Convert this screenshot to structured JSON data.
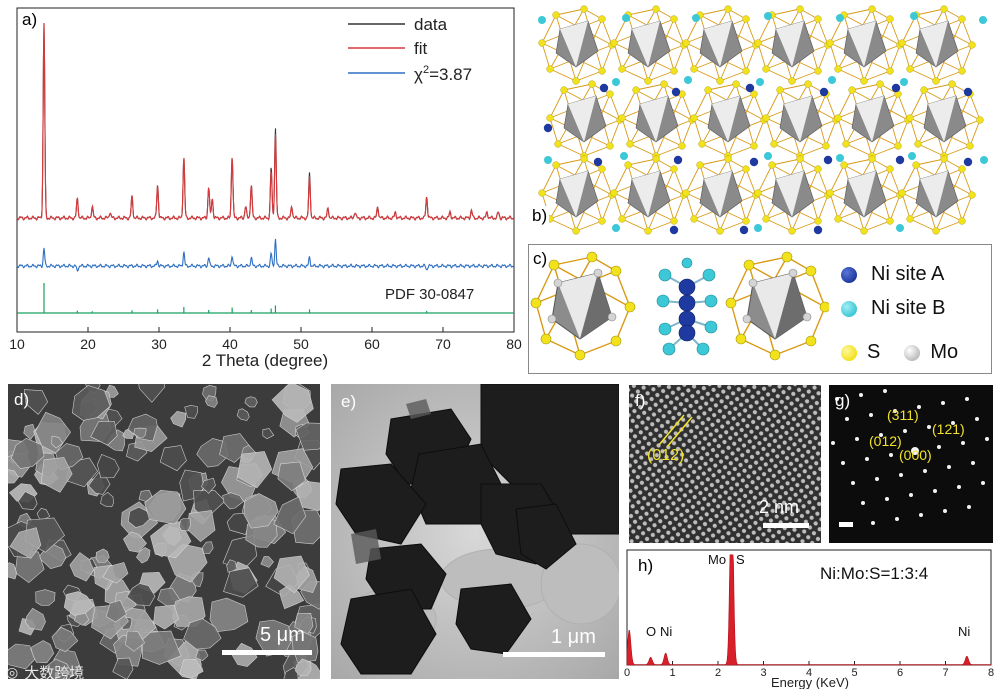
{
  "panels": {
    "a": {
      "label": "a)",
      "legend": {
        "data": "data",
        "fit": "fit",
        "chi": "χ",
        "chi_sup": "2",
        "chi_val": "=3.87"
      },
      "pdf_label": "PDF 30-0847",
      "colors": {
        "data": "#333333",
        "fit": "#d9393b",
        "residual": "#2f6fc2",
        "pdf": "#19a05f"
      }
    },
    "b": {
      "label": "b)"
    },
    "c": {
      "label": "c)",
      "legend": [
        {
          "name": "Ni site A",
          "color": "#1e3aa0"
        },
        {
          "name": "Ni site B",
          "color": "#3cc8d6"
        },
        {
          "name": "S",
          "color": "#f1e21c"
        },
        {
          "name": "Mo",
          "color": "#bdbdbd"
        }
      ]
    },
    "d": {
      "label": "d)",
      "scale": "5 μm"
    },
    "e": {
      "label": "e)",
      "scale": "1 μm"
    },
    "f": {
      "label": "f)",
      "plane": "(012)",
      "scale": "2 nm"
    },
    "g": {
      "label": "g)",
      "spots": [
        "(311)",
        "(121)",
        "(012)",
        "(000)"
      ]
    },
    "h": {
      "label": "h)",
      "ratio": "Ni:Mo:S=1:3:4",
      "peaks": [
        "O",
        "Ni",
        "Mo",
        "S",
        "Ni"
      ]
    },
    "watermark": "大数跨境"
  },
  "chart_data": [
    {
      "type": "line",
      "panel": "a",
      "xlabel": "2 Theta (degree)",
      "xlim": [
        10,
        80
      ],
      "xticks": [
        10,
        20,
        30,
        40,
        50,
        60,
        70,
        80
      ],
      "series": [
        {
          "name": "fit",
          "peaks": [
            [
              13.8,
              1.0
            ],
            [
              18.5,
              0.1
            ],
            [
              20.6,
              0.06
            ],
            [
              23.1,
              0.03
            ],
            [
              26.2,
              0.11
            ],
            [
              29.8,
              0.17
            ],
            [
              33.5,
              0.31
            ],
            [
              37.0,
              0.16
            ],
            [
              37.5,
              0.1
            ],
            [
              40.3,
              0.32
            ],
            [
              42.2,
              0.06
            ],
            [
              43.0,
              0.17
            ],
            [
              45.8,
              0.24
            ],
            [
              46.4,
              0.43
            ],
            [
              48.7,
              0.06
            ],
            [
              51.2,
              0.21
            ],
            [
              53.8,
              0.05
            ],
            [
              57.6,
              0.03
            ],
            [
              60.8,
              0.06
            ],
            [
              63.3,
              0.03
            ],
            [
              67.7,
              0.11
            ],
            [
              71.0,
              0.03
            ],
            [
              74.0,
              0.04
            ],
            [
              76.2,
              0.03
            ],
            [
              77.8,
              0.03
            ]
          ]
        },
        {
          "name": "data",
          "peaks": [
            [
              13.8,
              1.0
            ],
            [
              18.5,
              0.1
            ],
            [
              20.6,
              0.06
            ],
            [
              23.1,
              0.03
            ],
            [
              26.2,
              0.11
            ],
            [
              29.8,
              0.17
            ],
            [
              33.5,
              0.31
            ],
            [
              37.0,
              0.16
            ],
            [
              37.5,
              0.1
            ],
            [
              40.3,
              0.32
            ],
            [
              42.2,
              0.06
            ],
            [
              43.0,
              0.17
            ],
            [
              45.8,
              0.26
            ],
            [
              46.4,
              0.46
            ],
            [
              48.7,
              0.06
            ],
            [
              51.2,
              0.23
            ],
            [
              53.8,
              0.05
            ],
            [
              57.6,
              0.03
            ],
            [
              60.8,
              0.06
            ],
            [
              63.3,
              0.03
            ],
            [
              67.7,
              0.11
            ],
            [
              71.0,
              0.03
            ],
            [
              74.0,
              0.04
            ],
            [
              76.2,
              0.03
            ],
            [
              77.8,
              0.03
            ]
          ]
        },
        {
          "name": "residual",
          "peaks": [
            [
              13.8,
              0.1
            ],
            [
              18.5,
              -0.03
            ],
            [
              29.8,
              0.03
            ],
            [
              33.5,
              0.08
            ],
            [
              37.0,
              0.05
            ],
            [
              40.3,
              0.06
            ],
            [
              43.0,
              0.05
            ],
            [
              45.8,
              0.07
            ],
            [
              46.4,
              0.15
            ],
            [
              51.2,
              0.05
            ],
            [
              67.7,
              -0.02
            ]
          ]
        },
        {
          "name": "PDF 30-0847",
          "sticks": [
            [
              13.8,
              1.0
            ],
            [
              18.5,
              0.08
            ],
            [
              20.6,
              0.06
            ],
            [
              26.2,
              0.09
            ],
            [
              29.8,
              0.12
            ],
            [
              33.5,
              0.2
            ],
            [
              37.0,
              0.1
            ],
            [
              40.3,
              0.18
            ],
            [
              43.0,
              0.1
            ],
            [
              45.8,
              0.15
            ],
            [
              46.4,
              0.25
            ],
            [
              51.2,
              0.12
            ],
            [
              67.7,
              0.07
            ]
          ]
        }
      ]
    },
    {
      "type": "area",
      "panel": "h",
      "xlabel": "Energy (KeV)",
      "xlim": [
        0,
        8
      ],
      "xticks": [
        0,
        1,
        2,
        3,
        4,
        5,
        6,
        7,
        8
      ],
      "series": [
        {
          "name": "EDS",
          "peaks": [
            [
              0.05,
              0.33
            ],
            [
              0.52,
              0.07
            ],
            [
              0.85,
              0.11
            ],
            [
              2.29,
              1.0
            ],
            [
              2.31,
              0.9
            ],
            [
              7.47,
              0.08
            ]
          ]
        }
      ]
    }
  ]
}
